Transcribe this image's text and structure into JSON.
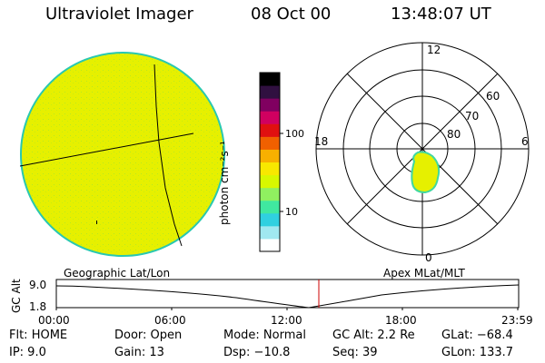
{
  "header": {
    "title": "Ultraviolet Imager",
    "date": "08 Oct 00",
    "time": "13:48:07 UT"
  },
  "colors": {
    "image_fill": "#e6f000",
    "image_edge": "#29c8b0",
    "grid_line": "#000000",
    "marker": "#cc0000"
  },
  "colorbar": {
    "unit_label": "photon cm⁻²s⁻¹",
    "ticks": [
      "100",
      "10"
    ],
    "stops": [
      "#ffffff",
      "#a0e8f0",
      "#30d0e0",
      "#40e8a0",
      "#90f060",
      "#d8f800",
      "#f8e800",
      "#f8b000",
      "#f06000",
      "#e01010",
      "#d00060",
      "#800060",
      "#301040",
      "#000000"
    ]
  },
  "polar_plot": {
    "mlt_labels": [
      "12",
      "18",
      "6",
      "0"
    ],
    "lat_labels": [
      "60",
      "70",
      "80"
    ]
  },
  "timeline": {
    "left_caption": "Geographic Lat/Lon",
    "right_caption": "Apex MLat/MLT",
    "y_axis_title": "GC Alt",
    "y_ticks": [
      "9.0",
      "1.8"
    ],
    "x_ticks": [
      "00:00",
      "06:00",
      "12:00",
      "18:00",
      "23:59"
    ]
  },
  "status": {
    "row1": {
      "flt": "Flt: HOME",
      "door": "Door: Open",
      "mode": "Mode: Normal",
      "gc_alt": "GC Alt: 2.2 Re",
      "glat": "GLat: −68.4"
    },
    "row2": {
      "ip": "IP:  9.0",
      "gain": "Gain: 13",
      "dsp": "Dsp:  −10.8",
      "seq": "Seq: 39",
      "glon": "GLon: 133.7"
    }
  }
}
